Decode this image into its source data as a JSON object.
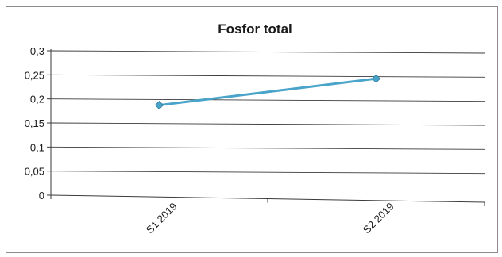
{
  "chart_data": {
    "type": "line",
    "title": "Fosfor total",
    "categories": [
      "S1 2019",
      "S2 2019"
    ],
    "y_tick_labels": [
      "0",
      "0,05",
      "0,1",
      "0,15",
      "0,2",
      "0,25",
      "0,3"
    ],
    "ylim": [
      0,
      0.3
    ],
    "series": [
      {
        "values": [
          0.187,
          0.242
        ],
        "color": "#4aa3c8"
      }
    ],
    "grid": true,
    "legend": "none"
  }
}
